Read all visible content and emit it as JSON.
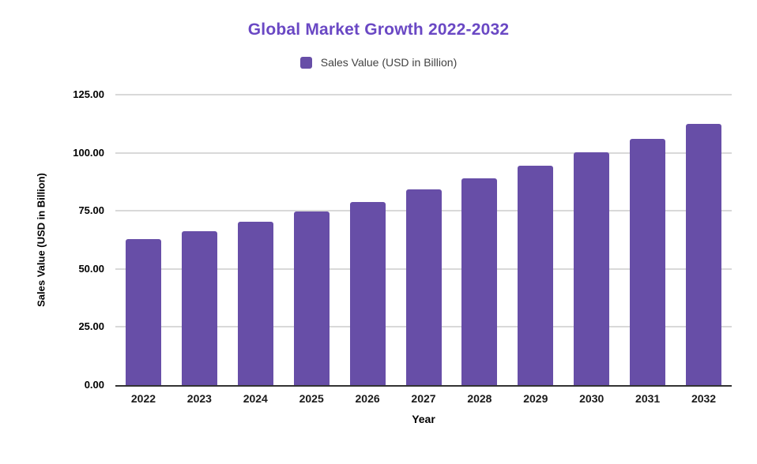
{
  "chart_data": {
    "type": "bar",
    "title": "Global Market Growth 2022-2032",
    "title_color": "#6a48c4",
    "legend": {
      "label": "Sales Value (USD in Billion)",
      "position": "top"
    },
    "categories": [
      "2022",
      "2023",
      "2024",
      "2025",
      "2026",
      "2027",
      "2028",
      "2029",
      "2030",
      "2031",
      "2032"
    ],
    "series": [
      {
        "name": "Sales Value (USD in Billion)",
        "values": [
          62.8,
          66.2,
          70.3,
          74.7,
          78.9,
          84.2,
          89.0,
          94.4,
          100.2,
          106.0,
          112.4
        ]
      }
    ],
    "xlabel": "Year",
    "ylabel": "Sales Value (USD in Billion)",
    "ylim": [
      0,
      125
    ],
    "yticks": [
      "0.00",
      "25.00",
      "50.00",
      "75.00",
      "100.00",
      "125.00"
    ],
    "ytick_values": [
      0,
      25,
      50,
      75,
      100,
      125
    ],
    "grid": true,
    "bar_color": "#674ea7",
    "grid_color": "#d9d9d9",
    "axis_line_color": "#333333",
    "legend_text_color": "#424242",
    "background_color": "#ffffff"
  }
}
